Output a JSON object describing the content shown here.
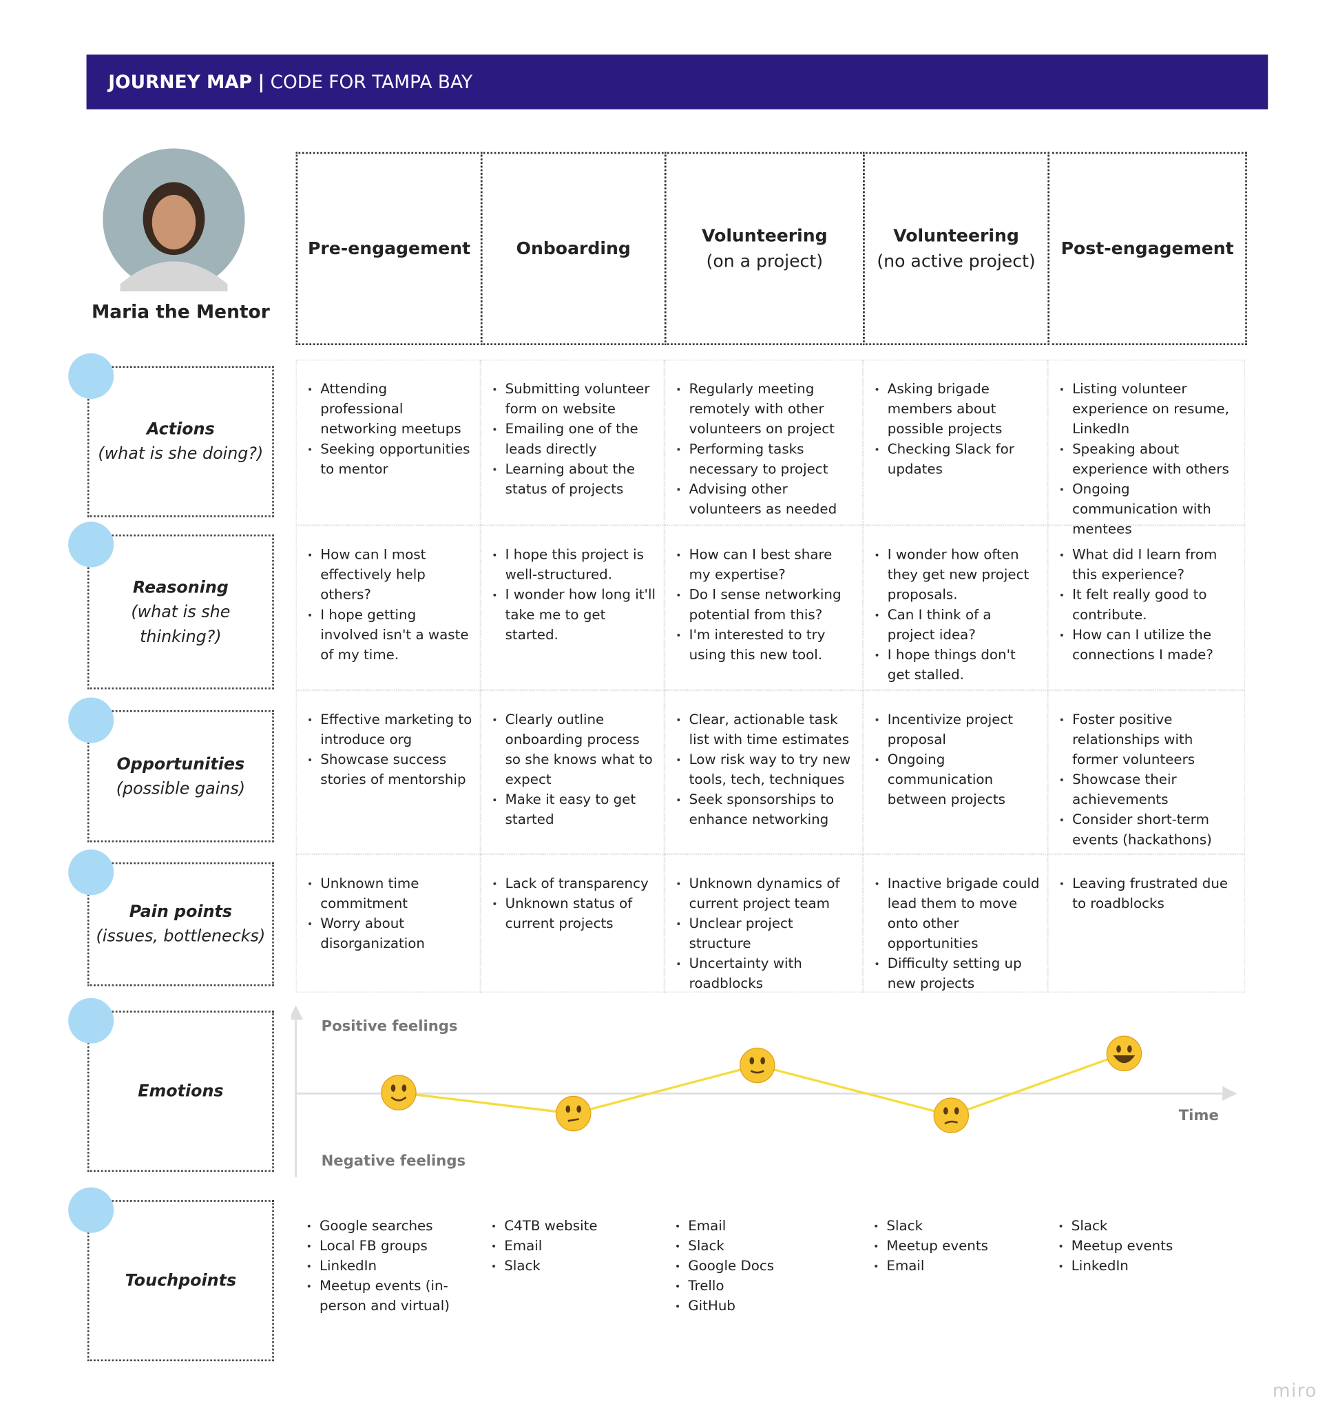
{
  "header": {
    "title": "JOURNEY MAP",
    "separator": "|",
    "subtitle": "CODE FOR TAMPA BAY"
  },
  "persona": {
    "name": "Maria the Mentor"
  },
  "stages": [
    {
      "title": "Pre-engagement"
    },
    {
      "title": "Onboarding"
    },
    {
      "title": "Volunteering",
      "subtitle": "(on a project)"
    },
    {
      "title": "Volunteering",
      "subtitle": "(no active project)"
    },
    {
      "title": "Post-engagement"
    }
  ],
  "rows": [
    {
      "title": "Actions",
      "subtitle": "(what is she doing?)",
      "cells": [
        [
          "Attending professional networking meetups",
          "Seeking opportunities to mentor"
        ],
        [
          "Submitting volunteer form on website",
          "Emailing one of the leads directly",
          "Learning about the status of projects"
        ],
        [
          "Regularly meeting remotely with other volunteers on project",
          "Performing tasks necessary to project",
          "Advising other volunteers as needed"
        ],
        [
          "Asking brigade members about possible projects",
          "Checking Slack for updates"
        ],
        [
          "Listing volunteer experience on resume, LinkedIn",
          "Speaking about experience with others",
          "Ongoing communication with mentees"
        ]
      ]
    },
    {
      "title": "Reasoning",
      "subtitle": "(what is she thinking?)",
      "cells": [
        [
          "How can I most effectively help others?",
          "I hope getting involved isn't a waste of my time."
        ],
        [
          "I hope this project is well-structured.",
          "I wonder how long it'll take me to get started."
        ],
        [
          "How can I best share my expertise?",
          "Do I sense networking potential from this?",
          "I'm interested to try using this new tool."
        ],
        [
          "I wonder how often they get new project proposals.",
          "Can I think of a project idea?",
          "I hope things don't get stalled."
        ],
        [
          "What did I learn from this experience?",
          "It felt really good to contribute.",
          "How can I utilize the connections I made?"
        ]
      ]
    },
    {
      "title": "Opportunities",
      "subtitle": "(possible gains)",
      "cells": [
        [
          "Effective marketing to introduce org",
          "Showcase success stories of mentorship"
        ],
        [
          "Clearly outline onboarding process so she knows what to expect",
          "Make it easy to get started"
        ],
        [
          "Clear, actionable task list with time estimates",
          "Low risk way to try new tools, tech, techniques",
          "Seek sponsorships to enhance networking"
        ],
        [
          "Incentivize project proposal",
          "Ongoing communication between projects"
        ],
        [
          "Foster positive relationships with former volunteers",
          "Showcase their achievements",
          "Consider short-term events (hackathons)"
        ]
      ]
    },
    {
      "title": "Pain points",
      "subtitle": "(issues, bottlenecks)",
      "cells": [
        [
          "Unknown time commitment",
          "Worry about disorganization"
        ],
        [
          "Lack of transparency",
          "Unknown status of current projects"
        ],
        [
          "Unknown dynamics of current project team",
          "Unclear project structure",
          "Uncertainty with roadblocks"
        ],
        [
          "Inactive brigade could lead them to move onto other opportunities",
          "Difficulty setting up new projects"
        ],
        [
          "Leaving frustrated due to roadblocks"
        ]
      ]
    },
    {
      "title": "Emotions"
    },
    {
      "title": "Touchpoints",
      "cells": [
        [
          "Google searches",
          "Local FB groups",
          "LinkedIn",
          "Meetup events (in-person and virtual)"
        ],
        [
          "C4TB website",
          "Email",
          "Slack"
        ],
        [
          "Email",
          "Slack",
          "Google Docs",
          "Trello",
          "GitHub"
        ],
        [
          "Slack",
          "Meetup events",
          "Email"
        ],
        [
          "Slack",
          "Meetup events",
          "LinkedIn"
        ]
      ]
    }
  ],
  "emotions": {
    "positive": "Positive feelings",
    "negative": "Negative feelings",
    "time": "Time"
  },
  "footer": "miro"
}
